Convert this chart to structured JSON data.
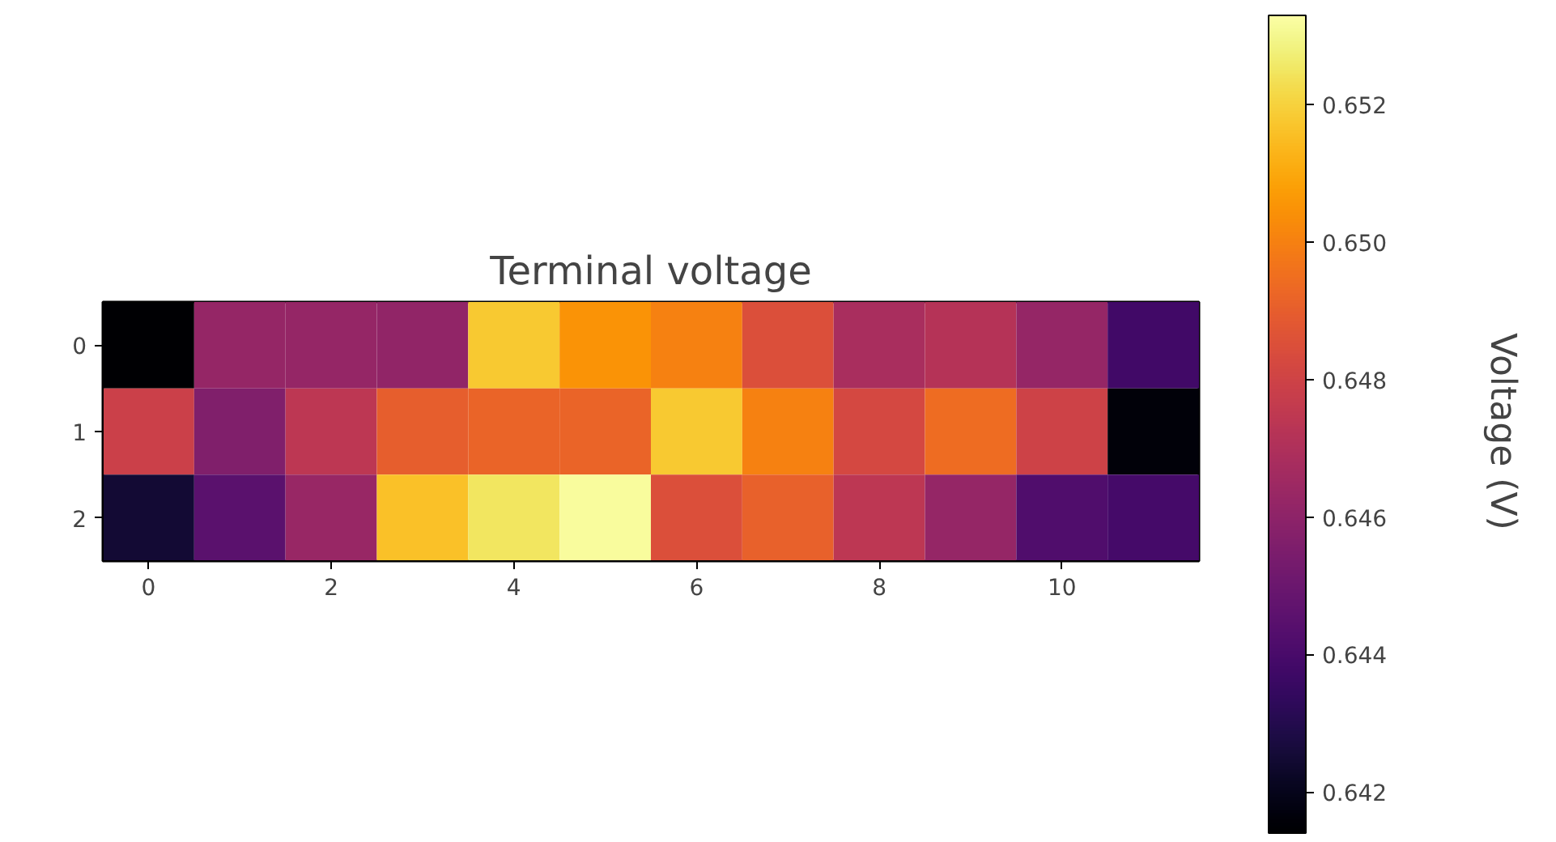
{
  "chart_data": {
    "type": "heatmap",
    "title": "Terminal voltage",
    "clabel": "Voltage (V)",
    "categories": [
      "0",
      null,
      "2",
      null,
      "4",
      null,
      "6",
      null,
      "8",
      null,
      "10",
      null
    ],
    "y_categories": [
      "0",
      "1",
      "2"
    ],
    "cells": [
      [
        0.6414,
        0.6462,
        0.6462,
        0.6461,
        0.6518,
        0.6505,
        0.65,
        0.6485,
        0.6468,
        0.6472,
        0.6462,
        0.6438
      ],
      [
        0.6479,
        0.6456,
        0.6474,
        0.649,
        0.6492,
        0.6492,
        0.6518,
        0.65,
        0.6482,
        0.6494,
        0.648,
        0.6416
      ],
      [
        0.6425,
        0.6445,
        0.6463,
        0.6516,
        0.6525,
        0.6532,
        0.6485,
        0.6491,
        0.6474,
        0.6462,
        0.6442,
        0.6439
      ]
    ],
    "clim": [
      0.6414,
      0.6533
    ],
    "cticks": [
      0.642,
      0.644,
      0.646,
      0.648,
      {
        "value": 0.65,
        "label": "0.650"
      },
      0.652
    ],
    "grid": false
  }
}
